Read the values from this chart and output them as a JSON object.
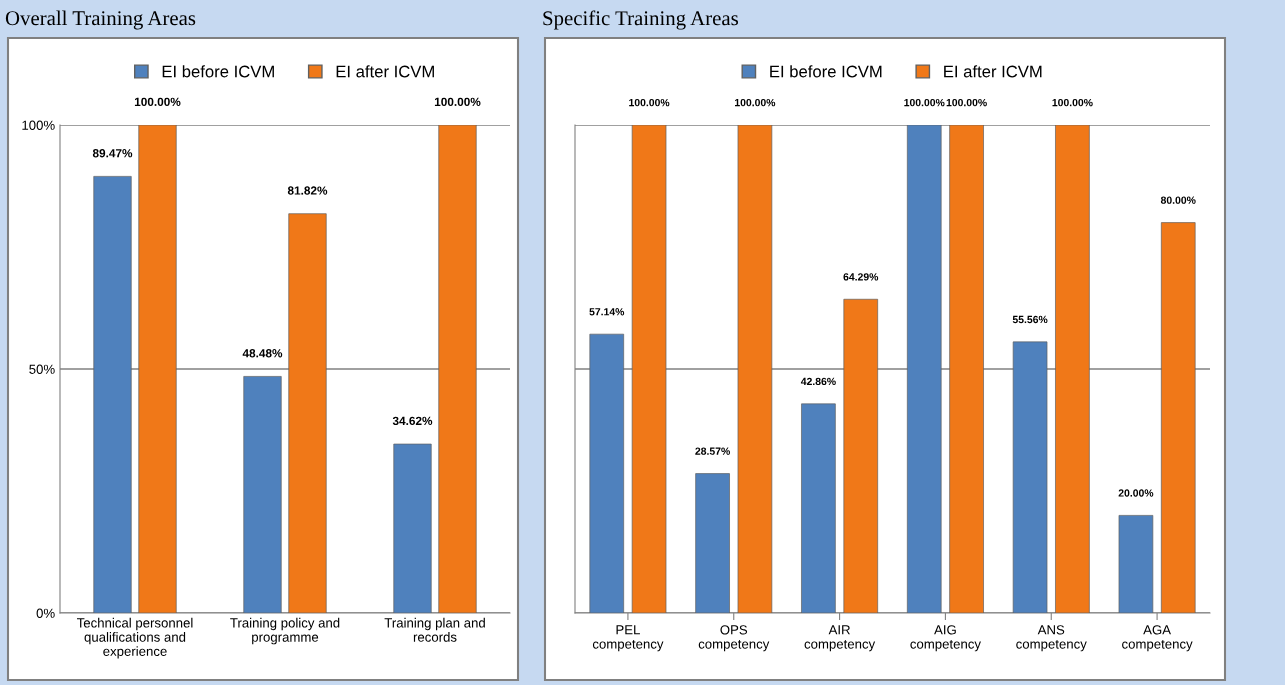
{
  "chart_data": [
    {
      "type": "bar",
      "title": "Overall Training Areas",
      "categories": [
        "Technical personnel qualifications and experience",
        "Training policy and programme",
        "Training plan and records"
      ],
      "series": [
        {
          "name": "EI before ICVM",
          "color": "#4f81bd",
          "values": [
            89.47,
            48.48,
            34.62
          ],
          "value_labels": [
            "89.47%",
            "48.48%",
            "34.62%"
          ]
        },
        {
          "name": "EI after ICVM",
          "color": "#f07818",
          "values": [
            100,
            81.82,
            100
          ],
          "value_labels": [
            "100.00%",
            "81.82%",
            "100.00%"
          ]
        }
      ],
      "ylim": [
        0,
        100
      ],
      "yticks": [
        {
          "value": 0,
          "label": "0%"
        },
        {
          "value": 50,
          "label": "50%"
        },
        {
          "value": 100,
          "label": "100%"
        }
      ],
      "grid": "y",
      "legend": "top"
    },
    {
      "type": "bar",
      "title": "Specific Training Areas",
      "categories": [
        "PEL competency",
        "OPS competency",
        "AIR competency",
        "AIG competency",
        "ANS competency",
        "AGA competency"
      ],
      "series": [
        {
          "name": "EI before ICVM",
          "color": "#4f81bd",
          "values": [
            57.14,
            28.57,
            42.86,
            100,
            55.56,
            20
          ],
          "value_labels": [
            "57.14%",
            "28.57%",
            "42.86%",
            "100.00%",
            "55.56%",
            "20.00%"
          ]
        },
        {
          "name": "EI after ICVM",
          "color": "#f07818",
          "values": [
            100,
            100,
            64.29,
            100,
            100,
            80
          ],
          "value_labels": [
            "100.00%",
            "100.00%",
            "64.29%",
            "100.00%",
            "100.00%",
            "80.00%"
          ]
        }
      ],
      "ylim": [
        0,
        100
      ],
      "yticks": [
        {
          "value": 0,
          "label": null
        },
        {
          "value": 50,
          "label": null
        },
        {
          "value": 100,
          "label": null
        }
      ],
      "grid": "y",
      "legend": "top",
      "tick_labels": "x"
    }
  ]
}
